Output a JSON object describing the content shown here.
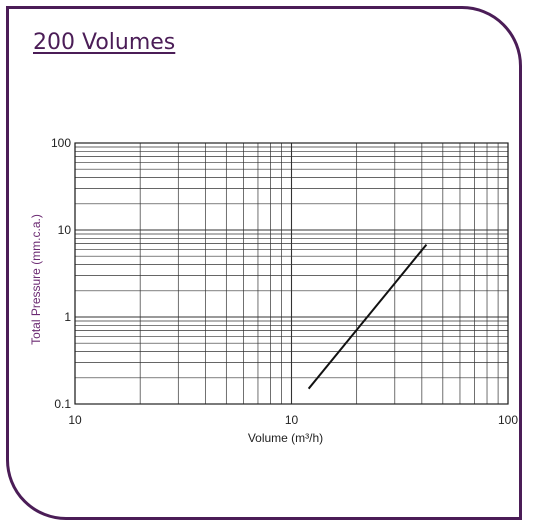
{
  "card": {
    "title": "200 Volumes"
  },
  "colors": {
    "accent": "#4b1d57",
    "ylabel": "#6b2a72",
    "grid": "#333333",
    "line": "#111111"
  },
  "chart_data": {
    "type": "line",
    "title": "",
    "xlabel": "Volume (m³/h)",
    "ylabel": "Total Pressure (mm.c.a.)",
    "xscale": "log",
    "yscale": "log",
    "xlim": [
      1,
      100
    ],
    "ylim": [
      0.1,
      100
    ],
    "x_tick_labels": [
      "10",
      "10",
      "100"
    ],
    "y_tick_labels": [
      "0.1",
      "1",
      "10",
      "100"
    ],
    "grid": true,
    "series": [
      {
        "x": [
          12,
          42
        ],
        "y": [
          0.15,
          6.8
        ]
      }
    ]
  }
}
